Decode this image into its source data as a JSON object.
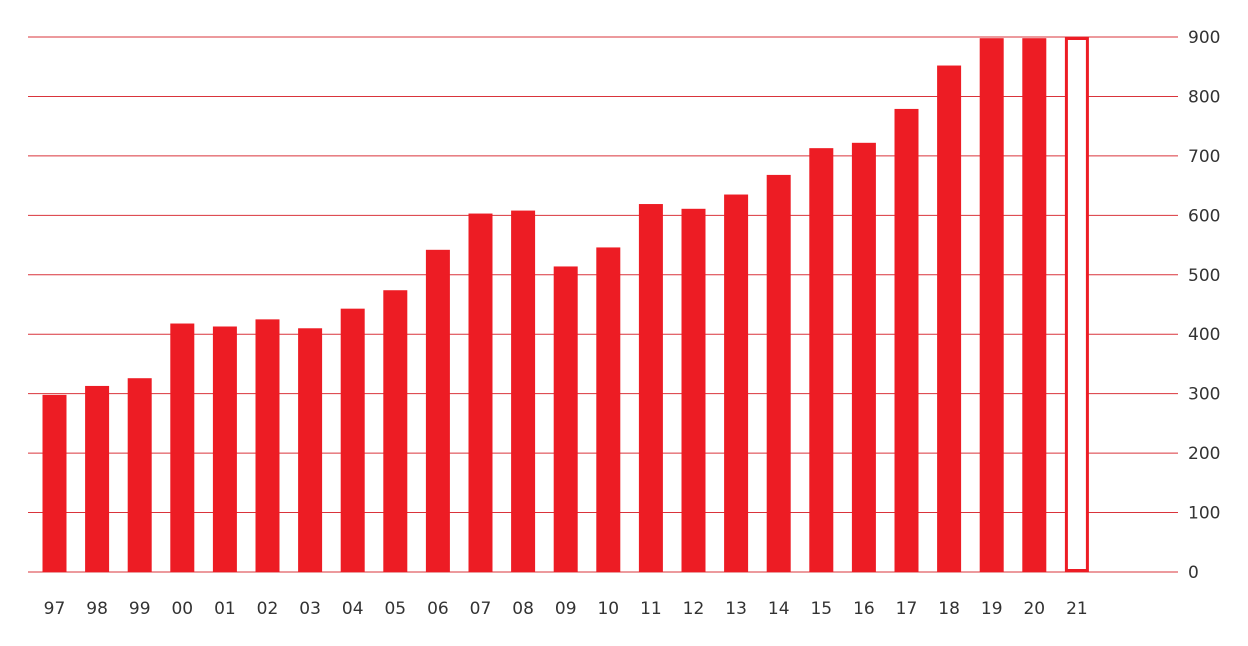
{
  "colors": {
    "bar": "#ed1c24",
    "grid": "#d9343b",
    "text": "#333333",
    "background": "#ffffff"
  },
  "chart_data": {
    "type": "bar",
    "title": "",
    "xlabel": "",
    "ylabel": "",
    "categories": [
      "97",
      "98",
      "99",
      "00",
      "01",
      "02",
      "03",
      "04",
      "05",
      "06",
      "07",
      "08",
      "09",
      "10",
      "11",
      "12",
      "13",
      "14",
      "15",
      "16",
      "17",
      "18",
      "19",
      "20",
      "21"
    ],
    "values": [
      298,
      313,
      326,
      418,
      413,
      425,
      410,
      443,
      474,
      542,
      603,
      608,
      514,
      546,
      619,
      611,
      635,
      668,
      713,
      722,
      779,
      852,
      898,
      898,
      900
    ],
    "bar_styles": [
      "filled",
      "filled",
      "filled",
      "filled",
      "filled",
      "filled",
      "filled",
      "filled",
      "filled",
      "filled",
      "filled",
      "filled",
      "filled",
      "filled",
      "filled",
      "filled",
      "filled",
      "filled",
      "filled",
      "filled",
      "filled",
      "filled",
      "filled",
      "filled",
      "outline"
    ],
    "ylim": [
      0,
      900
    ],
    "yticks": [
      0,
      100,
      200,
      300,
      400,
      500,
      600,
      700,
      800,
      900
    ],
    "y_axis_position": "right",
    "grid": true,
    "legend": "none"
  }
}
